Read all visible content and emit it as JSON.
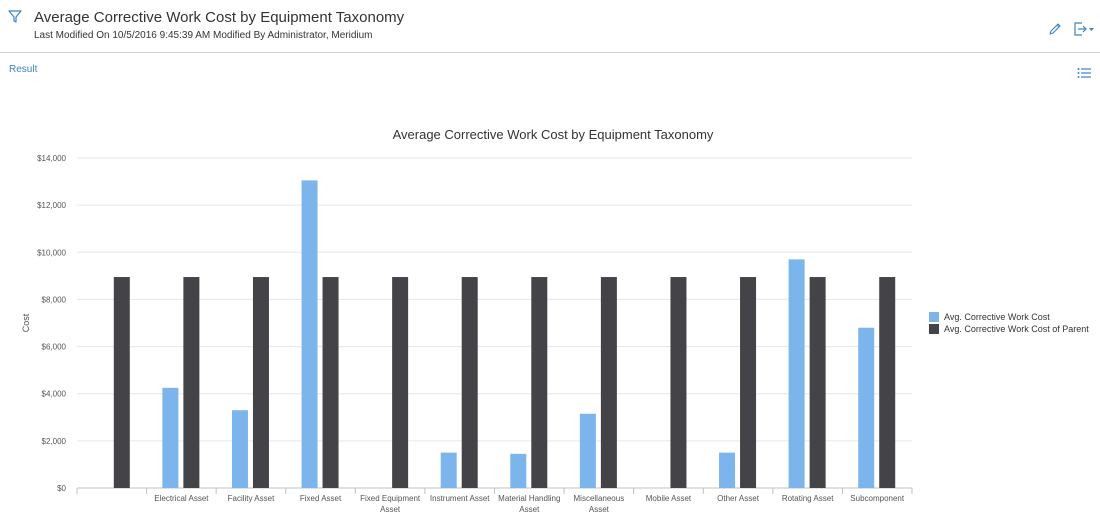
{
  "header": {
    "title": "Average Corrective Work Cost by Equipment Taxonomy",
    "subtitle": "Last Modified On 10/5/2016 9:45:39 AM Modified By Administrator, Meridium"
  },
  "result_link": "Result",
  "icons": {
    "filter": "filter-icon",
    "edit": "pencil-icon",
    "export": "export-icon",
    "list": "list-icon"
  },
  "colors": {
    "accent": "#3d83c4",
    "series_1": "#7cb5ec",
    "series_2": "#434348"
  },
  "chart_data": {
    "type": "bar",
    "title": "Average Corrective Work Cost by Equipment Taxonomy",
    "ylabel": "Cost",
    "xlabel": "",
    "ylim": [
      0,
      14000
    ],
    "yticks": [
      "$0",
      "$2,000",
      "$4,000",
      "$6,000",
      "$8,000",
      "$10,000",
      "$12,000",
      "$14,000"
    ],
    "grid": true,
    "legend_position": "right",
    "categories": [
      "",
      "Electrical Asset",
      "Facility Asset",
      "Fixed Asset",
      "Fixed Equipment Asset",
      "Instrument Asset",
      "Material Handling Asset",
      "Miscellaneous Asset",
      "Mobile Asset",
      "Other Asset",
      "Rotating Asset",
      "Subcomponent"
    ],
    "series": [
      {
        "name": "Avg. Corrective Work Cost",
        "color": "#7cb5ec",
        "values": [
          0,
          4250,
          3300,
          13050,
          0,
          1500,
          1450,
          3150,
          0,
          1500,
          9700,
          6800
        ]
      },
      {
        "name": "Avg. Corrective Work Cost of Parent",
        "color": "#434348",
        "values": [
          8950,
          8950,
          8950,
          8950,
          8950,
          8950,
          8950,
          8950,
          8950,
          8950,
          8950,
          8950
        ]
      }
    ]
  }
}
